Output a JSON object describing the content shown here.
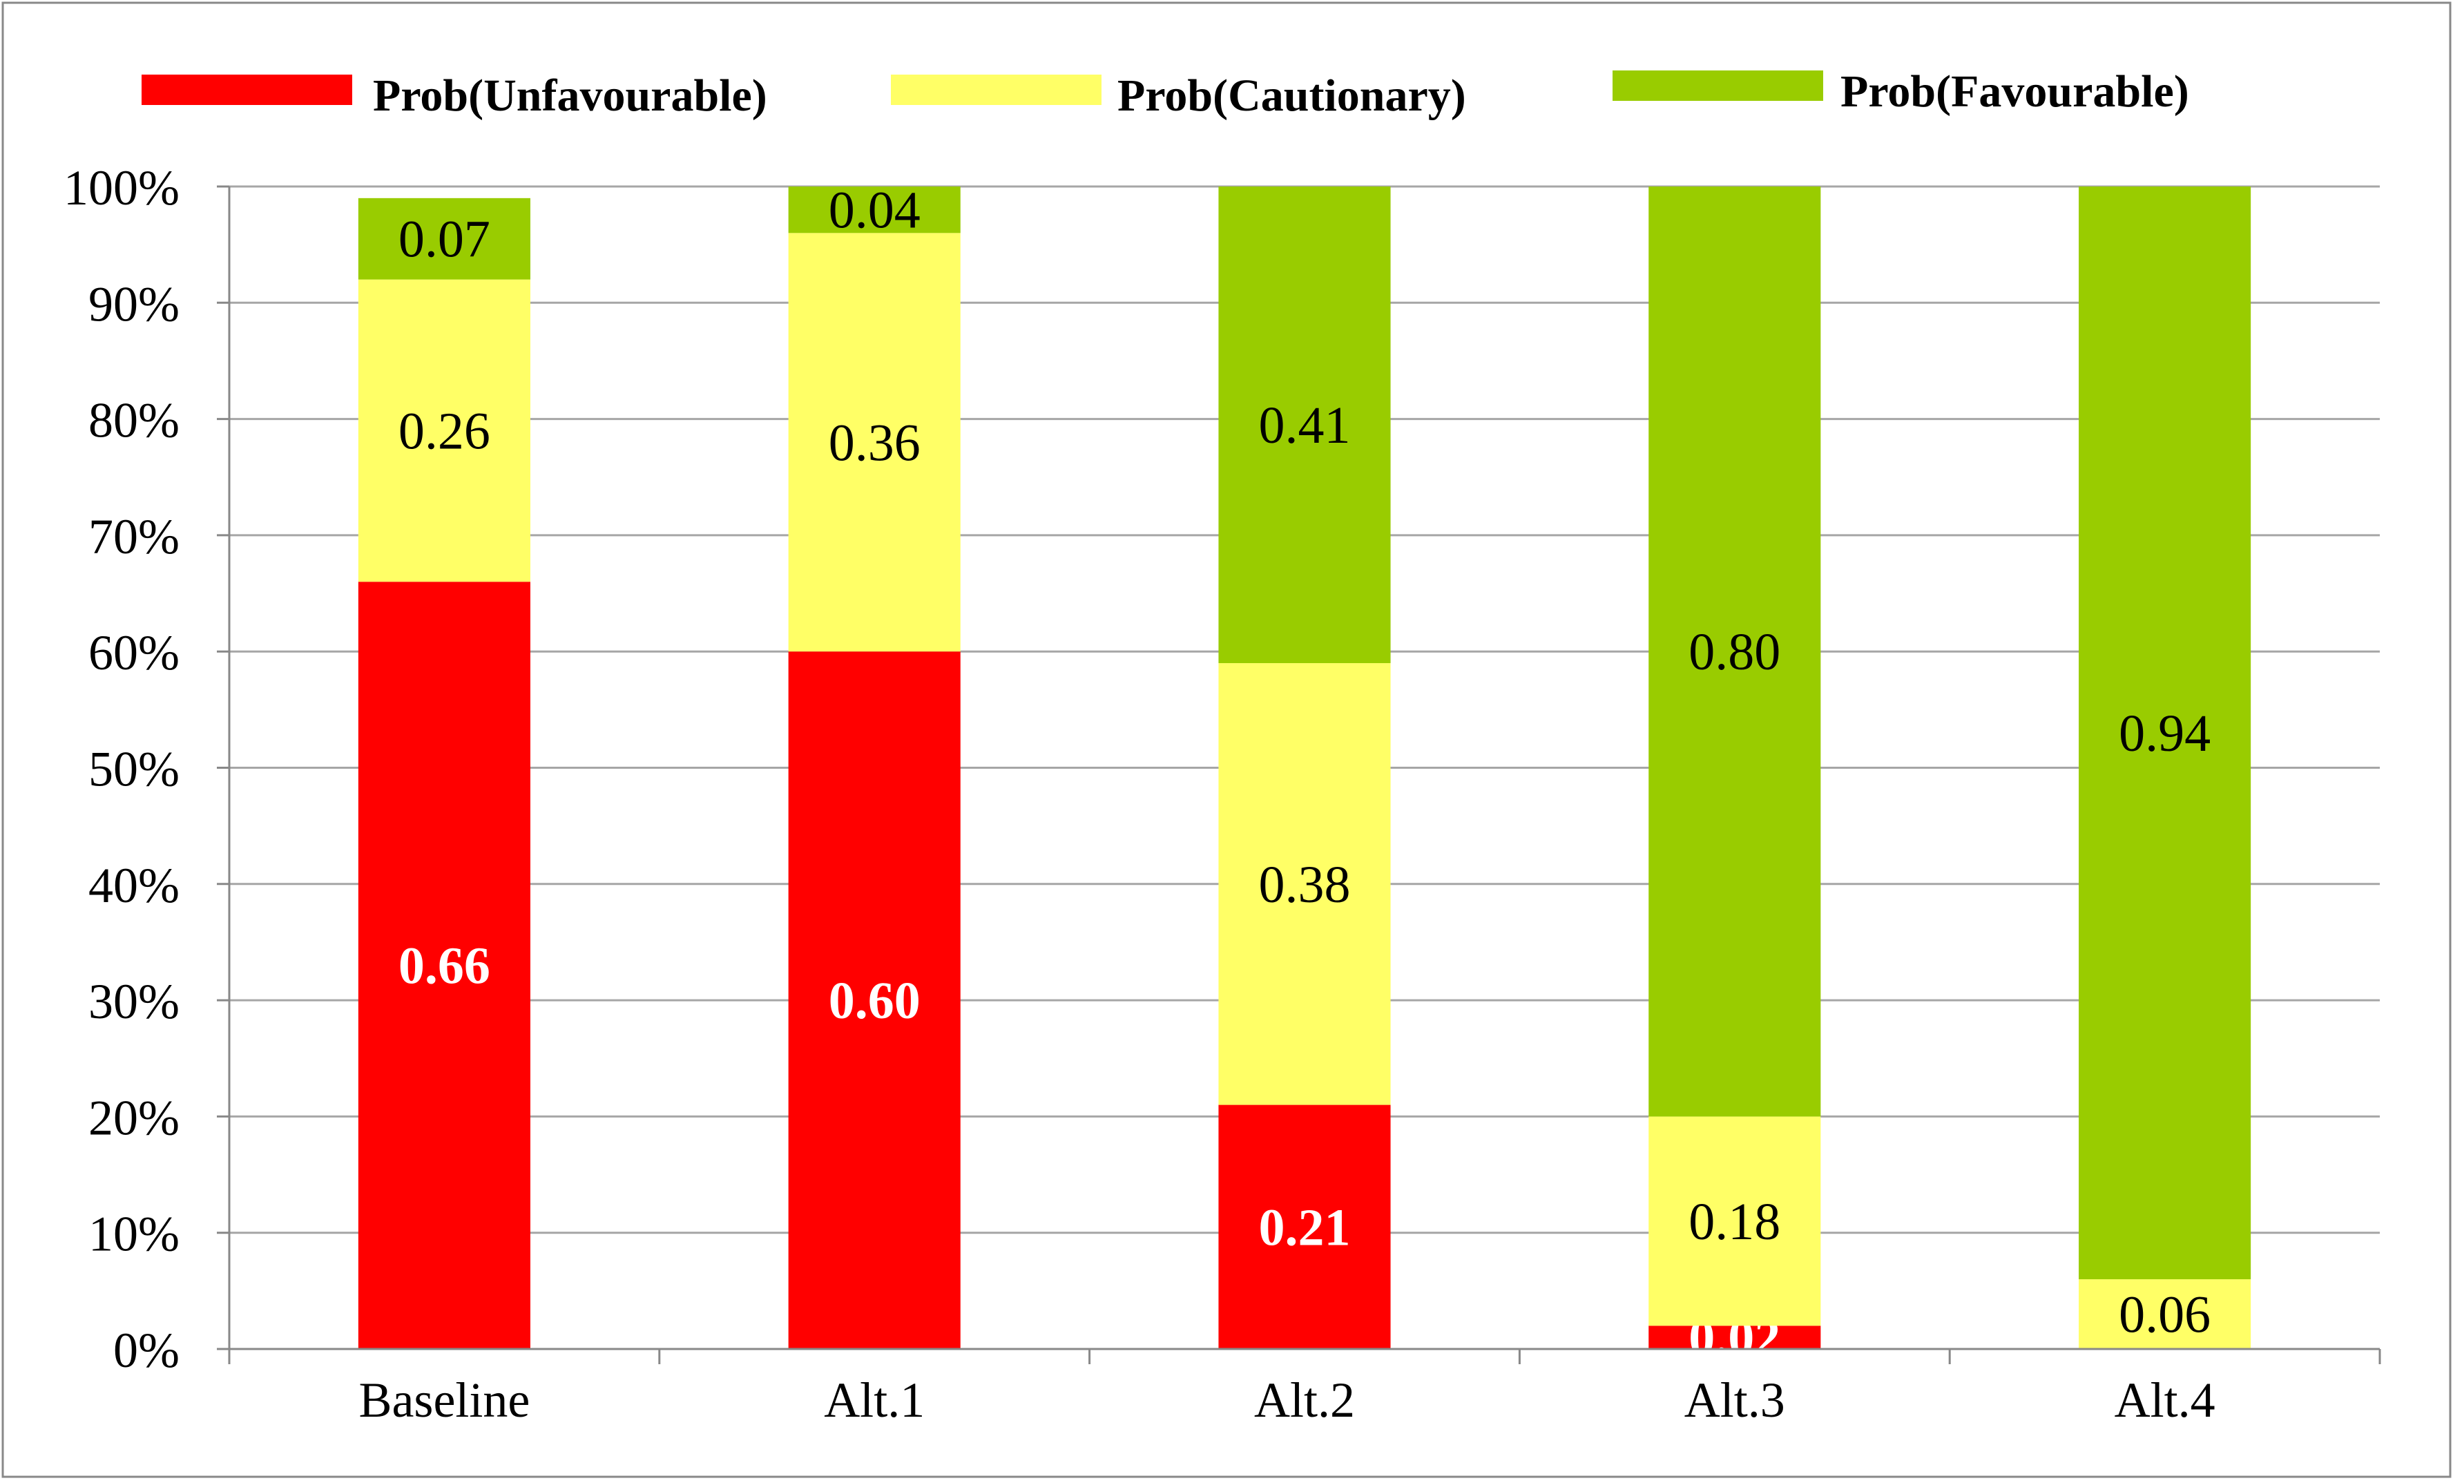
{
  "chart_data": {
    "type": "bar",
    "stacked": true,
    "title": "",
    "xlabel": "",
    "ylabel": "",
    "ylim": [
      0,
      1
    ],
    "yticks": [
      "0%",
      "10%",
      "20%",
      "30%",
      "40%",
      "50%",
      "60%",
      "70%",
      "80%",
      "90%",
      "100%"
    ],
    "grid": true,
    "legend_position": "top",
    "categories": [
      "Baseline",
      "Alt.1",
      "Alt.2",
      "Alt.3",
      "Alt.4"
    ],
    "series": [
      {
        "name": "Prob(Unfavourable)",
        "color": "#ff0000",
        "label_color": "#ffffff",
        "values": [
          0.66,
          0.6,
          0.21,
          0.02,
          0.0
        ],
        "labels": [
          "0.66",
          "0.60",
          "0.21",
          "0.02",
          ""
        ]
      },
      {
        "name": "Prob(Cautionary)",
        "color": "#ffff66",
        "label_color": "#000000",
        "values": [
          0.26,
          0.36,
          0.38,
          0.18,
          0.06
        ],
        "labels": [
          "0.26",
          "0.36",
          "0.38",
          "0.18",
          "0.06"
        ]
      },
      {
        "name": "Prob(Favourable)",
        "color": "#99cc00",
        "label_color": "#000000",
        "values": [
          0.07,
          0.04,
          0.41,
          0.8,
          0.94
        ],
        "labels": [
          "0.07",
          "0.04",
          "0.41",
          "0.80",
          "0.94"
        ]
      }
    ]
  }
}
